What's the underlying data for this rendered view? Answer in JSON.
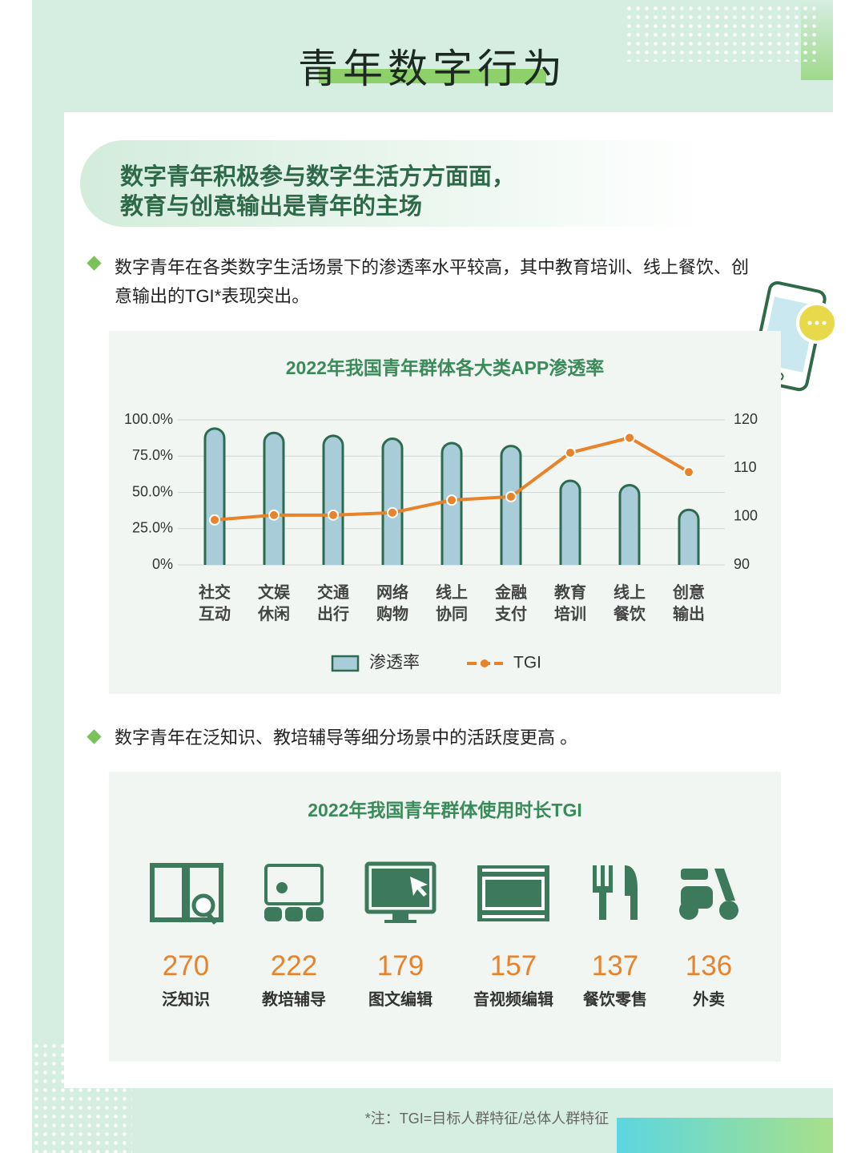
{
  "header": {
    "title": "青年数字行为"
  },
  "headline": [
    "数字青年积极参与数字生活方方面面，",
    "教育与创意输出是青年的主场"
  ],
  "bullets": [
    "数字青年在各类数字生活场景下的渗透率水平较高，其中教育培训、线上餐饮、创意输出的TGI*表现突出。",
    "数字青年在泛知识、教培辅导等细分场景中的活跃度更高 。"
  ],
  "chart_data": {
    "type": "bar",
    "title": "2022年我国青年群体各大类APP渗透率",
    "categories": [
      "社交互动",
      "文娱休闲",
      "交通出行",
      "网络购物",
      "线上协同",
      "金融支付",
      "教育培训",
      "线上餐饮",
      "创意输出"
    ],
    "series": [
      {
        "name": "渗透率",
        "type": "bar",
        "color": "#a9cdd8",
        "values": [
          94,
          91,
          89,
          87,
          84,
          82,
          58,
          55,
          38
        ]
      },
      {
        "name": "TGI",
        "type": "line",
        "axis": "y2",
        "color": "#e8822b",
        "values": [
          99.3,
          100.3,
          100.3,
          100.8,
          103.4,
          104.1,
          113.2,
          116.3,
          109.2
        ]
      }
    ],
    "ylim": [
      0,
      100
    ],
    "yticks": [
      {
        "value": 0,
        "label": "0%"
      },
      {
        "value": 25,
        "label": "25.0%"
      },
      {
        "value": 50,
        "label": "50.0%"
      },
      {
        "value": 75,
        "label": "75.0%"
      },
      {
        "value": 100,
        "label": "100.0%"
      }
    ],
    "y2lim": [
      90,
      120
    ],
    "y2ticks": [
      90,
      100,
      110,
      120
    ],
    "grid": true,
    "legend": "bottom"
  },
  "tgi_section": {
    "title": "2022年我国青年群体使用时长TGI",
    "items": [
      {
        "value": 270,
        "label": "泛知识"
      },
      {
        "value": 222,
        "label": "教培辅导"
      },
      {
        "value": 179,
        "label": "图文编辑"
      },
      {
        "value": 157,
        "label": "音视频编辑"
      },
      {
        "value": 137,
        "label": "餐饮零售"
      },
      {
        "value": 136,
        "label": "外卖"
      }
    ]
  },
  "note": "*注：TGI=目标人群特征/总体人群特征"
}
